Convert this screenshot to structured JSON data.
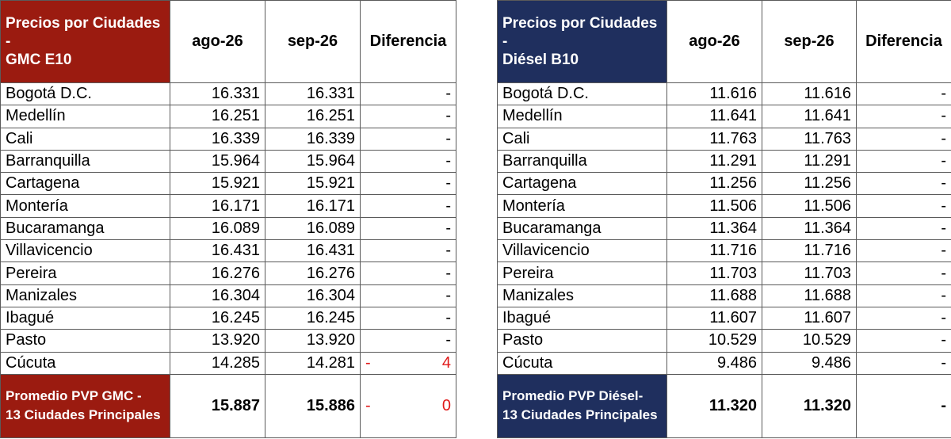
{
  "gmc": {
    "title_line1": "Precios por Ciudades",
    "title_line2": "-",
    "title_line3": "GMC E10",
    "headers": [
      "ago-26",
      "sep-26",
      "Diferencia"
    ],
    "rows": [
      {
        "city": "Bogotá D.C.",
        "ago": "16.331",
        "sep": "16.331",
        "diff_sign": "",
        "diff": "-"
      },
      {
        "city": "Medellín",
        "ago": "16.251",
        "sep": "16.251",
        "diff_sign": "",
        "diff": "-"
      },
      {
        "city": "Cali",
        "ago": "16.339",
        "sep": "16.339",
        "diff_sign": "",
        "diff": "-"
      },
      {
        "city": "Barranquilla",
        "ago": "15.964",
        "sep": "15.964",
        "diff_sign": "",
        "diff": "-"
      },
      {
        "city": "Cartagena",
        "ago": "15.921",
        "sep": "15.921",
        "diff_sign": "",
        "diff": "-"
      },
      {
        "city": "Montería",
        "ago": "16.171",
        "sep": "16.171",
        "diff_sign": "",
        "diff": "-"
      },
      {
        "city": "Bucaramanga",
        "ago": "16.089",
        "sep": "16.089",
        "diff_sign": "",
        "diff": "-"
      },
      {
        "city": "Villavicencio",
        "ago": "16.431",
        "sep": "16.431",
        "diff_sign": "",
        "diff": "-"
      },
      {
        "city": "Pereira",
        "ago": "16.276",
        "sep": "16.276",
        "diff_sign": "",
        "diff": "-"
      },
      {
        "city": "Manizales",
        "ago": "16.304",
        "sep": "16.304",
        "diff_sign": "",
        "diff": "-"
      },
      {
        "city": "Ibagué",
        "ago": "16.245",
        "sep": "16.245",
        "diff_sign": "",
        "diff": "-"
      },
      {
        "city": "Pasto",
        "ago": "13.920",
        "sep": "13.920",
        "diff_sign": "",
        "diff": "-"
      },
      {
        "city": "Cúcuta",
        "ago": "14.285",
        "sep": "14.281",
        "diff_sign": "-",
        "diff": "4"
      }
    ],
    "footer_line1": "Promedio PVP GMC -",
    "footer_line2": "13 Ciudades Principales",
    "footer_ago": "15.887",
    "footer_sep": "15.886",
    "footer_diff_sign": "-",
    "footer_diff": "0",
    "negative_color": "#e01a1a",
    "accent": "#9b1b10"
  },
  "diesel": {
    "title_line1": "Precios por Ciudades",
    "title_line2": "-",
    "title_line3": "Diésel B10",
    "headers": [
      "ago-26",
      "sep-26",
      "Diferencia"
    ],
    "rows": [
      {
        "city": "Bogotá D.C.",
        "ago": "11.616",
        "sep": "11.616",
        "diff_sign": "",
        "diff": "-"
      },
      {
        "city": "Medellín",
        "ago": "11.641",
        "sep": "11.641",
        "diff_sign": "",
        "diff": "-"
      },
      {
        "city": "Cali",
        "ago": "11.763",
        "sep": "11.763",
        "diff_sign": "",
        "diff": "-"
      },
      {
        "city": "Barranquilla",
        "ago": "11.291",
        "sep": "11.291",
        "diff_sign": "",
        "diff": "-"
      },
      {
        "city": "Cartagena",
        "ago": "11.256",
        "sep": "11.256",
        "diff_sign": "",
        "diff": "-"
      },
      {
        "city": "Montería",
        "ago": "11.506",
        "sep": "11.506",
        "diff_sign": "",
        "diff": "-"
      },
      {
        "city": "Bucaramanga",
        "ago": "11.364",
        "sep": "11.364",
        "diff_sign": "",
        "diff": "-"
      },
      {
        "city": "Villavicencio",
        "ago": "11.716",
        "sep": "11.716",
        "diff_sign": "",
        "diff": "-"
      },
      {
        "city": "Pereira",
        "ago": "11.703",
        "sep": "11.703",
        "diff_sign": "",
        "diff": "-"
      },
      {
        "city": "Manizales",
        "ago": "11.688",
        "sep": "11.688",
        "diff_sign": "",
        "diff": "-"
      },
      {
        "city": "Ibagué",
        "ago": "11.607",
        "sep": "11.607",
        "diff_sign": "",
        "diff": "-"
      },
      {
        "city": "Pasto",
        "ago": "10.529",
        "sep": "10.529",
        "diff_sign": "",
        "diff": "-"
      },
      {
        "city": "Cúcuta",
        "ago": "9.486",
        "sep": "9.486",
        "diff_sign": "",
        "diff": "-"
      }
    ],
    "footer_line1": "Promedio PVP Diésel-",
    "footer_line2": "13 Ciudades Principales",
    "footer_ago": "11.320",
    "footer_sep": "11.320",
    "footer_diff_sign": "",
    "footer_diff": "-",
    "accent": "#1f2f5e"
  }
}
